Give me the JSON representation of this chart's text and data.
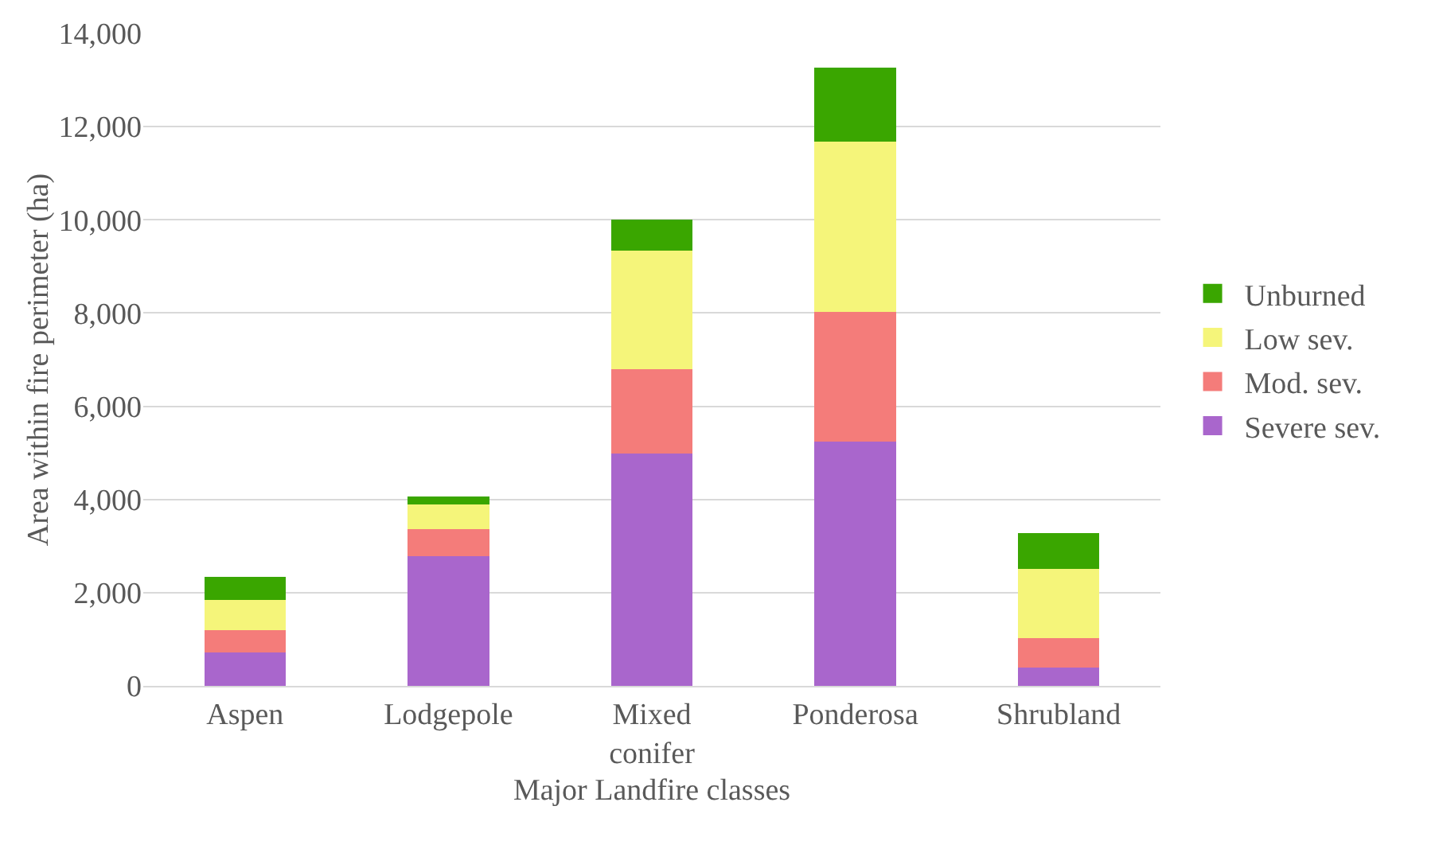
{
  "chart_data": {
    "type": "bar",
    "stacked": true,
    "xlabel": "Major Landfire classes",
    "ylabel": "Area within fire perimeter (ha)",
    "categories": [
      "Aspen",
      "Lodgepole",
      "Mixed conifer",
      "Ponderosa",
      "Shrubland"
    ],
    "series": [
      {
        "name": "Severe sev.",
        "color": "#a966cc",
        "values": [
          710,
          2790,
          4980,
          5250,
          400
        ]
      },
      {
        "name": "Mod. sev.",
        "color": "#f47c7a",
        "values": [
          490,
          570,
          1810,
          2770,
          620
        ]
      },
      {
        "name": "Low sev.",
        "color": "#f5f57a",
        "values": [
          650,
          530,
          2550,
          3660,
          1490
        ]
      },
      {
        "name": "Unburned",
        "color": "#3aa600",
        "values": [
          490,
          180,
          660,
          1580,
          770
        ]
      }
    ],
    "ylim": [
      0,
      14000
    ],
    "yticks": [
      {
        "value": 0,
        "label": "0"
      },
      {
        "value": 2000,
        "label": "2,000"
      },
      {
        "value": 4000,
        "label": "4,000"
      },
      {
        "value": 6000,
        "label": "6,000"
      },
      {
        "value": 8000,
        "label": "8,000"
      },
      {
        "value": 10000,
        "label": "10,000"
      },
      {
        "value": 12000,
        "label": "12,000"
      },
      {
        "value": 14000,
        "label": "14,000"
      }
    ],
    "grid": "y",
    "legend": "right"
  }
}
